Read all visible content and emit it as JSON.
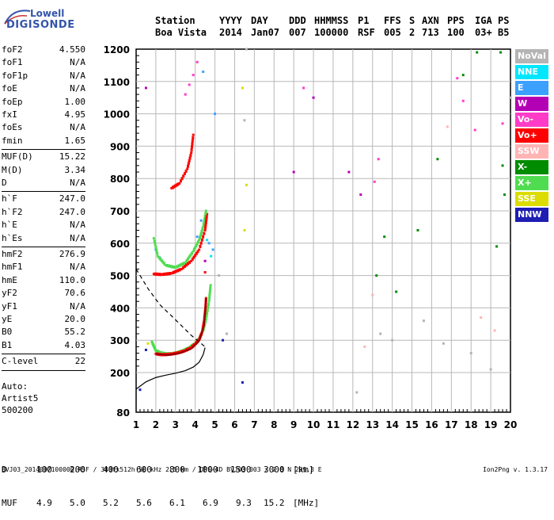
{
  "logo": {
    "line1": "Lowell",
    "line2": "DIGISONDE"
  },
  "header": {
    "row1": [
      "Station",
      "YYYY",
      "DAY",
      "DDD",
      "HHMMSS",
      "P1",
      "FFS",
      "S",
      "AXN",
      "PPS",
      "IGA",
      "PS"
    ],
    "row2": [
      "Boa Vista",
      "2014",
      "Jan07",
      "007",
      "100000",
      "RSF",
      "005",
      "2",
      "713",
      "100",
      "03+",
      "B5"
    ]
  },
  "params": {
    "group1": [
      {
        "name": "foF2",
        "value": "4.550"
      },
      {
        "name": "foF1",
        "value": "N/A"
      },
      {
        "name": "foF1p",
        "value": "N/A"
      },
      {
        "name": "foE",
        "value": "N/A"
      },
      {
        "name": "foEp",
        "value": "1.00"
      },
      {
        "name": "fxI",
        "value": "4.95"
      },
      {
        "name": "foEs",
        "value": "N/A"
      },
      {
        "name": "fmin",
        "value": "1.65"
      }
    ],
    "group2": [
      {
        "name": "MUF(D)",
        "value": "15.22"
      },
      {
        "name": "M(D)",
        "value": "3.34"
      },
      {
        "name": "D",
        "value": "N/A"
      }
    ],
    "group3": [
      {
        "name": "h`F",
        "value": "247.0"
      },
      {
        "name": "h`F2",
        "value": "247.0"
      },
      {
        "name": "h`E",
        "value": "N/A"
      },
      {
        "name": "h`Es",
        "value": "N/A"
      }
    ],
    "group4": [
      {
        "name": "hmF2",
        "value": "276.9"
      },
      {
        "name": "hmF1",
        "value": "N/A"
      },
      {
        "name": "hmE",
        "value": "110.0"
      },
      {
        "name": "yF2",
        "value": "70.6"
      },
      {
        "name": "yF1",
        "value": "N/A"
      },
      {
        "name": "yE",
        "value": "20.0"
      },
      {
        "name": "B0",
        "value": "55.2"
      },
      {
        "name": "B1",
        "value": "4.03"
      }
    ],
    "group5": [
      {
        "name": "C-level",
        "value": "22"
      }
    ]
  },
  "auto": {
    "line1": "Auto:",
    "line2": "Artist5",
    "line3": "500200"
  },
  "footer": {
    "d_label": "D",
    "d_values": [
      "100",
      "200",
      "400",
      "600",
      "800",
      "1000",
      "1500",
      "3000"
    ],
    "d_unit": "[km]",
    "muf_label": "MUF",
    "muf_values": [
      "4.9",
      "5.0",
      "5.2",
      "5.6",
      "6.1",
      "6.9",
      "9.3",
      "15.2"
    ],
    "muf_unit": "[MHz]"
  },
  "bottom_line": "BVJ03_2014007100000.RSF / 380fx512h 50 kHz 2.5 km / DPS-4D BVJ03 003 / 2.8 N 299.3 E",
  "version": "Ion2Png v. 1.3.17",
  "legend": [
    {
      "label": "NoVal",
      "color": "#b4b4b4"
    },
    {
      "label": "NNE",
      "color": "#00e6ff"
    },
    {
      "label": "E",
      "color": "#3ca0ff"
    },
    {
      "label": "W",
      "color": "#b400b4"
    },
    {
      "label": "Vo-",
      "color": "#ff3cc8"
    },
    {
      "label": "Vo+",
      "color": "#ff0000"
    },
    {
      "label": "SSW",
      "color": "#ffb4b4"
    },
    {
      "label": "X-",
      "color": "#008c00"
    },
    {
      "label": "X+",
      "color": "#50dc50"
    },
    {
      "label": "SSE",
      "color": "#dcdc00"
    },
    {
      "label": "NNW",
      "color": "#1e1eb4"
    }
  ],
  "chart_data": {
    "type": "scatter",
    "xlim": [
      1,
      20
    ],
    "ylim": [
      80,
      1200
    ],
    "x_ticks": [
      "1",
      "2",
      "3",
      "4",
      "5",
      "6",
      "7",
      "8",
      "9",
      "10",
      "11",
      "12",
      "13",
      "14",
      "15",
      "16",
      "17",
      "18",
      "19",
      "20"
    ],
    "y_ticks": [
      "80",
      "200",
      "300",
      "400",
      "500",
      "600",
      "700",
      "800",
      "900",
      "1000",
      "1100",
      "1200"
    ],
    "grid": true,
    "series": [
      {
        "name": "X+",
        "color": "#50dc50",
        "points": [
          [
            1.8,
            295
          ],
          [
            2.0,
            268
          ],
          [
            2.2,
            262
          ],
          [
            2.5,
            258
          ],
          [
            2.8,
            258
          ],
          [
            3.1,
            262
          ],
          [
            3.4,
            268
          ],
          [
            3.7,
            277
          ],
          [
            4.0,
            290
          ],
          [
            4.2,
            305
          ],
          [
            4.4,
            330
          ],
          [
            4.55,
            365
          ],
          [
            4.7,
            420
          ],
          [
            4.78,
            470
          ],
          [
            1.9,
            615
          ],
          [
            2.1,
            560
          ],
          [
            2.5,
            532
          ],
          [
            3.0,
            525
          ],
          [
            3.5,
            540
          ],
          [
            3.9,
            575
          ],
          [
            4.2,
            610
          ],
          [
            4.4,
            650
          ],
          [
            4.55,
            700
          ]
        ]
      },
      {
        "name": "Vo+",
        "color": "#ff0000",
        "points": [
          [
            2.0,
            258
          ],
          [
            2.3,
            255
          ],
          [
            2.6,
            256
          ],
          [
            2.9,
            258
          ],
          [
            3.2,
            262
          ],
          [
            3.5,
            268
          ],
          [
            3.8,
            277
          ],
          [
            4.0,
            288
          ],
          [
            4.2,
            302
          ],
          [
            4.35,
            325
          ],
          [
            4.45,
            360
          ],
          [
            4.52,
            400
          ],
          [
            4.55,
            430
          ],
          [
            1.9,
            505
          ],
          [
            2.3,
            503
          ],
          [
            2.8,
            507
          ],
          [
            3.3,
            520
          ],
          [
            3.8,
            545
          ],
          [
            4.2,
            580
          ],
          [
            4.5,
            640
          ],
          [
            4.6,
            690
          ],
          [
            2.8,
            770
          ],
          [
            3.2,
            785
          ],
          [
            3.6,
            830
          ],
          [
            3.8,
            880
          ],
          [
            3.9,
            935
          ],
          [
            4.5,
            510
          ]
        ]
      },
      {
        "name": "Vo-",
        "color": "#ff3cc8",
        "points": [
          [
            3.5,
            1060
          ],
          [
            3.7,
            1090
          ],
          [
            3.9,
            1120
          ],
          [
            4.1,
            1160
          ],
          [
            9.5,
            1080
          ],
          [
            13.1,
            790
          ],
          [
            13.3,
            860
          ],
          [
            17.3,
            1110
          ],
          [
            17.6,
            1040
          ],
          [
            18.2,
            950
          ],
          [
            19.6,
            970
          ]
        ]
      },
      {
        "name": "E",
        "color": "#3ca0ff",
        "points": [
          [
            4.1,
            620
          ],
          [
            4.3,
            670
          ],
          [
            4.7,
            600
          ],
          [
            4.9,
            580
          ],
          [
            5.0,
            1000
          ],
          [
            4.4,
            1130
          ],
          [
            2.0,
            580
          ],
          [
            2.2,
            555
          ]
        ]
      },
      {
        "name": "W",
        "color": "#b400b4",
        "points": [
          [
            1.5,
            1080
          ],
          [
            4.5,
            545
          ],
          [
            9.0,
            820
          ],
          [
            10.0,
            1050
          ],
          [
            11.8,
            820
          ],
          [
            12.4,
            750
          ]
        ]
      },
      {
        "name": "X-",
        "color": "#008c00",
        "points": [
          [
            13.2,
            500
          ],
          [
            13.6,
            620
          ],
          [
            14.2,
            450
          ],
          [
            15.3,
            640
          ],
          [
            16.3,
            860
          ],
          [
            17.6,
            1120
          ],
          [
            18.3,
            1190
          ],
          [
            19.3,
            590
          ],
          [
            19.6,
            840
          ],
          [
            19.7,
            750
          ],
          [
            19.5,
            1190
          ]
        ]
      },
      {
        "name": "SSE",
        "color": "#dcdc00",
        "points": [
          [
            1.6,
            290
          ],
          [
            6.4,
            1080
          ],
          [
            6.5,
            640
          ],
          [
            6.6,
            780
          ]
        ]
      },
      {
        "name": "NNW",
        "color": "#1e1eb4",
        "points": [
          [
            1.2,
            148
          ],
          [
            1.5,
            270
          ],
          [
            5.4,
            300
          ],
          [
            6.4,
            170
          ]
        ]
      },
      {
        "name": "NoVal",
        "color": "#b4b4b4",
        "points": [
          [
            5.2,
            500
          ],
          [
            5.6,
            320
          ],
          [
            6.5,
            980
          ],
          [
            6.6,
            1200
          ],
          [
            12.2,
            140
          ],
          [
            13.4,
            320
          ],
          [
            14.0,
            300
          ],
          [
            15.6,
            360
          ],
          [
            16.6,
            290
          ],
          [
            18.0,
            260
          ],
          [
            19.0,
            210
          ],
          [
            20.0,
            1050
          ]
        ]
      },
      {
        "name": "SSW",
        "color": "#ffb4b4",
        "points": [
          [
            12.6,
            280
          ],
          [
            13.0,
            440
          ],
          [
            16.8,
            960
          ],
          [
            18.5,
            370
          ],
          [
            19.2,
            330
          ]
        ]
      },
      {
        "name": "NNE",
        "color": "#00e6ff",
        "points": [
          [
            4.6,
            610
          ],
          [
            4.8,
            560
          ]
        ]
      }
    ],
    "profile_curve": [
      [
        1.0,
        520
      ],
      [
        1.6,
        460
      ],
      [
        2.2,
        410
      ],
      [
        2.8,
        375
      ],
      [
        3.3,
        345
      ],
      [
        3.8,
        315
      ],
      [
        4.2,
        295
      ],
      [
        4.55,
        277
      ]
    ],
    "h_prime_curve": [
      [
        1.0,
        150
      ],
      [
        1.5,
        172
      ],
      [
        2.0,
        185
      ],
      [
        2.5,
        192
      ],
      [
        3.0,
        198
      ],
      [
        3.5,
        206
      ],
      [
        3.9,
        217
      ],
      [
        4.2,
        232
      ],
      [
        4.4,
        255
      ],
      [
        4.5,
        277
      ]
    ]
  }
}
